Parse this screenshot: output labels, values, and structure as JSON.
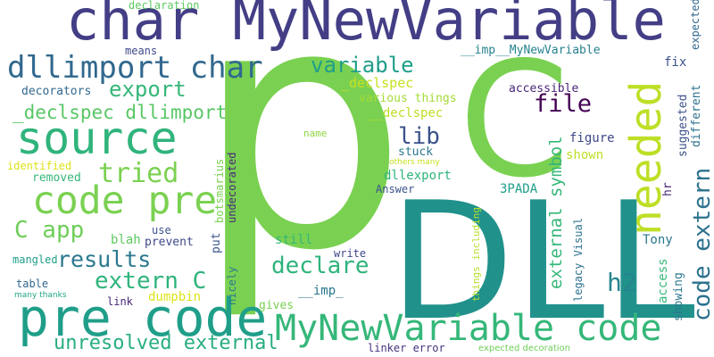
{
  "colors": {
    "background": "#ffffff",
    "palette": [
      "#440154",
      "#482878",
      "#3e4989",
      "#31688e",
      "#26828e",
      "#1f9e89",
      "#35b779",
      "#6ece58",
      "#b5de2b",
      "#fde725"
    ]
  },
  "words": [
    {
      "text": "p",
      "color": "#7ad151"
    },
    {
      "text": "DLL",
      "color": "#21918c"
    },
    {
      "text": "C",
      "color": "#7ad151"
    },
    {
      "text": "char MyNewVariable",
      "color": "#433e85"
    },
    {
      "text": "pre code",
      "color": "#1f9e89"
    },
    {
      "text": "source",
      "color": "#2fb47c"
    },
    {
      "text": "code pre",
      "color": "#7ad151"
    },
    {
      "text": "MyNewVariable code",
      "color": "#35b779"
    },
    {
      "text": "needed",
      "color": "#bddf26"
    },
    {
      "text": "dllimport char",
      "color": "#31688e"
    },
    {
      "text": "code extern",
      "color": "#2c728e"
    },
    {
      "text": "extern C",
      "color": "#2fb47c"
    },
    {
      "text": "results",
      "color": "#2a788e"
    },
    {
      "text": "declare",
      "color": "#2fb47c"
    },
    {
      "text": "_declspec dllimport",
      "color": "#58c765"
    },
    {
      "text": "tried",
      "color": "#7ad151"
    },
    {
      "text": "variable",
      "color": "#1f9e89"
    },
    {
      "text": "export",
      "color": "#35b779"
    },
    {
      "text": "C app",
      "color": "#6ece58"
    },
    {
      "text": "unresolved external",
      "color": "#28ae80"
    },
    {
      "text": "h2",
      "color": "#25858e"
    },
    {
      "text": "file",
      "color": "#440154"
    },
    {
      "text": "lib",
      "color": "#3b528b"
    },
    {
      "text": "external symbol",
      "color": "#35b779"
    },
    {
      "text": "__imp__MyNewVariable",
      "color": "#26828e"
    },
    {
      "text": "_declspec",
      "color": "#c8e020"
    },
    {
      "text": "__declspec",
      "color": "#bddf26"
    },
    {
      "text": "various things",
      "color": "#a5db36"
    },
    {
      "text": "accessible",
      "color": "#482475"
    },
    {
      "text": "decorators",
      "color": "#31688e"
    },
    {
      "text": "declaration",
      "color": "#5ec962"
    },
    {
      "text": "means",
      "color": "#3e4989"
    },
    {
      "text": "fix",
      "color": "#3b528b"
    },
    {
      "text": "expected",
      "color": "#31688e"
    },
    {
      "text": "different",
      "color": "#2d708e"
    },
    {
      "text": "suggested",
      "color": "#3b528b"
    },
    {
      "text": "hr",
      "color": "#482878"
    },
    {
      "text": "figure",
      "color": "#3e4989"
    },
    {
      "text": "shown",
      "color": "#bddf26"
    },
    {
      "text": "stuck",
      "color": "#2a788e"
    },
    {
      "text": "others many",
      "color": "#c8e020"
    },
    {
      "text": "name",
      "color": "#90d743"
    },
    {
      "text": "identified",
      "color": "#dde318"
    },
    {
      "text": "removed",
      "color": "#35b779"
    },
    {
      "text": "Answer",
      "color": "#3b528b"
    },
    {
      "text": "dllexport",
      "color": "#2fb47c"
    },
    {
      "text": "3PADA",
      "color": "#1f9e89"
    },
    {
      "text": "undecorated",
      "color": "#482878"
    },
    {
      "text": "botsmarius",
      "color": "#7ad151"
    },
    {
      "text": "put",
      "color": "#39568c"
    },
    {
      "text": "blah",
      "color": "#5ec962"
    },
    {
      "text": "use",
      "color": "#3b528b"
    },
    {
      "text": "prevent",
      "color": "#3e4989"
    },
    {
      "text": "mangled",
      "color": "#1f9e89"
    },
    {
      "text": "still",
      "color": "#35b779"
    },
    {
      "text": "write",
      "color": "#3e4989"
    },
    {
      "text": "dumpbin",
      "color": "#dde318"
    },
    {
      "text": "__imp_",
      "color": "#2a788e"
    },
    {
      "text": "gives",
      "color": "#7ad151"
    },
    {
      "text": "table",
      "color": "#31688e"
    },
    {
      "text": "many thanks",
      "color": "#21a685"
    },
    {
      "text": "link",
      "color": "#482878"
    },
    {
      "text": "nicely",
      "color": "#2a788e"
    },
    {
      "text": "things including",
      "color": "#b5de2b"
    },
    {
      "text": "legacy Visual",
      "color": "#2c728e"
    },
    {
      "text": "Tony",
      "color": "#2a788e"
    },
    {
      "text": "access",
      "color": "#35b779"
    },
    {
      "text": "showing",
      "color": "#2a788e"
    },
    {
      "text": "linker error",
      "color": "#46327e"
    },
    {
      "text": "expected decoration",
      "color": "#6ece58"
    }
  ]
}
